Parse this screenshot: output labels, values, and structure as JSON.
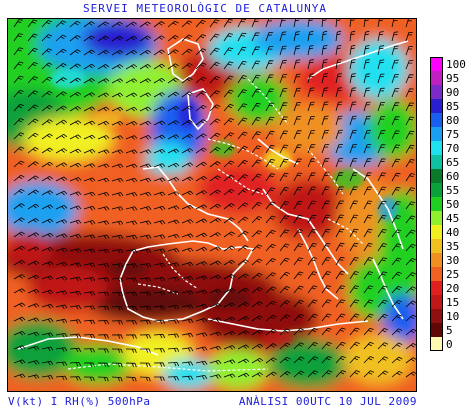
{
  "header": {
    "title": "SERVEI METEOROLÒGIC DE CATALUNYA"
  },
  "footer": {
    "left": "V(kt) I RH(%) 500hPa",
    "right": "ANÀLISI 00UTC 10 JUL 2009"
  },
  "legend": {
    "items": [
      {
        "label": "100",
        "color": "#ff00ff"
      },
      {
        "label": "95",
        "color": "#c020c0"
      },
      {
        "label": "90",
        "color": "#7a2bc8"
      },
      {
        "label": "85",
        "color": "#2a1fd0"
      },
      {
        "label": "80",
        "color": "#1a5ef0"
      },
      {
        "label": "75",
        "color": "#1aa0f0"
      },
      {
        "label": "70",
        "color": "#20e0f0"
      },
      {
        "label": "65",
        "color": "#10c0a0"
      },
      {
        "label": "60",
        "color": "#0a7a2a"
      },
      {
        "label": "55",
        "color": "#0aa03a"
      },
      {
        "label": "50",
        "color": "#20d020"
      },
      {
        "label": "45",
        "color": "#90f030"
      },
      {
        "label": "40",
        "color": "#f0f020"
      },
      {
        "label": "35",
        "color": "#f0c020"
      },
      {
        "label": "30",
        "color": "#f09020"
      },
      {
        "label": "25",
        "color": "#f06020"
      },
      {
        "label": "20",
        "color": "#e02020"
      },
      {
        "label": "15",
        "color": "#c01818"
      },
      {
        "label": "10",
        "color": "#901010"
      },
      {
        "label": "5",
        "color": "#600808"
      },
      {
        "label": "0",
        "color": "#fff8b0"
      }
    ]
  }
}
